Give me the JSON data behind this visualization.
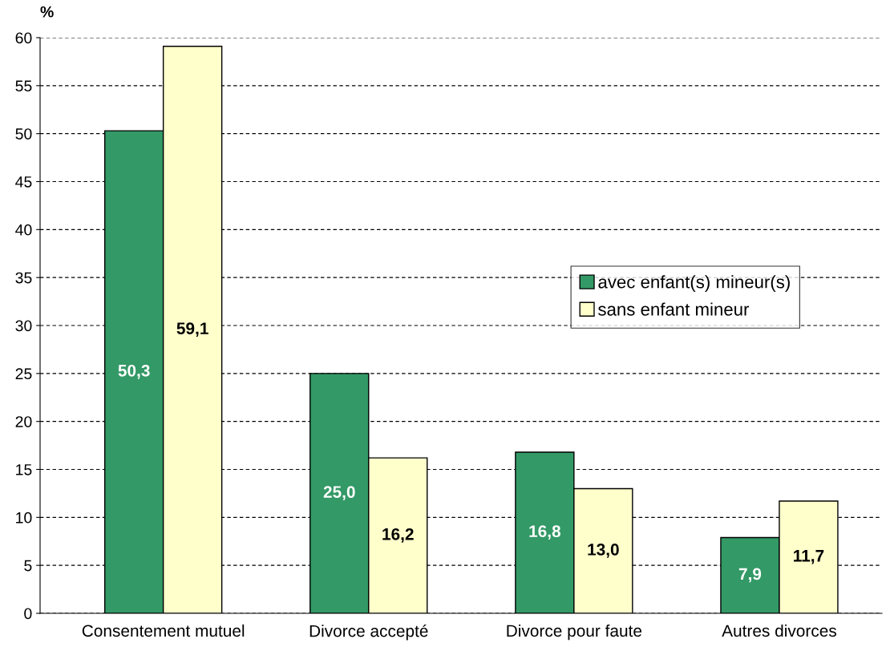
{
  "chart_data": {
    "type": "bar",
    "ylabel": "%",
    "categories": [
      "Consentement mutuel",
      "Divorce accepté",
      "Divorce pour faute",
      "Autres divorces"
    ],
    "series": [
      {
        "name": "avec enfant(s) mineur(s)",
        "color": "#339966",
        "values": [
          50.3,
          25.0,
          16.8,
          7.9
        ],
        "value_labels": [
          "50,3",
          "25,0",
          "16,8",
          "7,9"
        ]
      },
      {
        "name": "sans enfant mineur",
        "color": "#ffffcc",
        "values": [
          59.1,
          16.2,
          13.0,
          11.7
        ],
        "value_labels": [
          "59,1",
          "16,2",
          "13,0",
          "11,7"
        ]
      }
    ],
    "ylim": [
      0,
      60
    ],
    "yticks": [
      0,
      5,
      10,
      15,
      20,
      25,
      30,
      35,
      40,
      45,
      50,
      55,
      60
    ],
    "grid": "y",
    "legend": "right"
  }
}
